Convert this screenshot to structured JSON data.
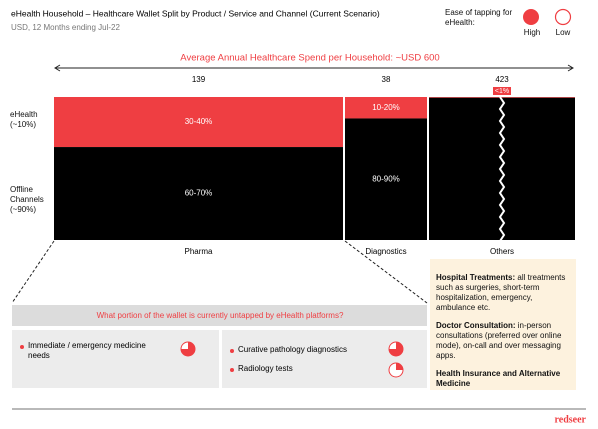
{
  "chart_data": {
    "type": "mekko",
    "title": "eHealth Household – Healthcare Wallet Split by Product / Service and Channel (Current Scenario)",
    "subtitle": "USD, 12 Months ending Jul-22",
    "header": "Average Annual Healthcare Spend per Household: ~USD 600",
    "categories": [
      "Pharma",
      "Diagnostics",
      "Others"
    ],
    "widths": [
      139,
      38,
      423
    ],
    "series": [
      {
        "name": "eHealth (~10%)",
        "color": "#ef3e42",
        "values": [
          35,
          15,
          0.5
        ],
        "value_labels": [
          "30-40%",
          "10-20%",
          "<1%"
        ]
      },
      {
        "name": "Offline Channels (~90%)",
        "color": "#000000",
        "values": [
          65,
          85,
          99.5
        ],
        "value_labels": [
          "60-70%",
          "80-90%",
          null
        ]
      }
    ],
    "legend": {
      "title": "Ease of tapping for eHealth:",
      "high": "High",
      "low": "Low"
    }
  },
  "question": "What portion of the wallet is currently untapped by eHealth platforms?",
  "untapped": [
    {
      "text": "Immediate / emergency medicine needs",
      "ease": 0.75
    },
    {
      "text": "Curative pathology diagnostics",
      "ease": 0.75
    },
    {
      "text": "Radiology tests",
      "ease": 0.25
    }
  ],
  "others_notes": [
    {
      "heading": "Hospital Treatments:",
      "text": "all treatments such as surgeries, short-term hospitalization, emergency, ambulance etc."
    },
    {
      "heading": "Doctor Consultation:",
      "text": "in-person consultations (preferred over online mode), on-call and over messaging apps."
    },
    {
      "heading": "Health Insurance and Alternative Medicine",
      "text": null
    }
  ],
  "brand": "redseer"
}
